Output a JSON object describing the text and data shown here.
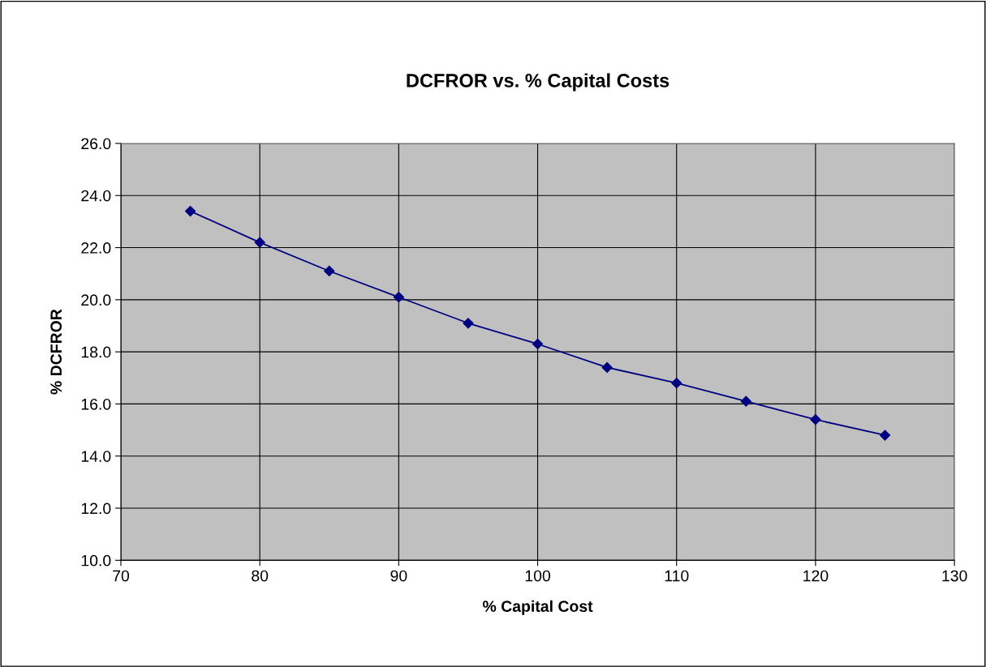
{
  "chart_data": {
    "type": "line",
    "title": "DCFROR vs. % Capital Costs",
    "xlabel": "% Capital Cost",
    "ylabel": "% DCFROR",
    "x": [
      75,
      80,
      85,
      90,
      95,
      100,
      105,
      110,
      115,
      120,
      125
    ],
    "series": [
      {
        "color": "#000080",
        "values": [
          23.4,
          22.2,
          21.1,
          20.1,
          19.1,
          18.3,
          17.4,
          16.8,
          16.1,
          15.4,
          14.8
        ]
      }
    ],
    "xlim": [
      70,
      130
    ],
    "xticks": [
      70,
      80,
      90,
      100,
      110,
      120,
      130
    ],
    "ylim": [
      10,
      26
    ],
    "yticks": [
      {
        "value": 10,
        "label": "10.0"
      },
      {
        "value": 12,
        "label": "12.0"
      },
      {
        "value": 14,
        "label": "14.0"
      },
      {
        "value": 16,
        "label": "16.0"
      },
      {
        "value": 18,
        "label": "18.0"
      },
      {
        "value": 20,
        "label": "20.0"
      },
      {
        "value": 22,
        "label": "22.0"
      },
      {
        "value": 24,
        "label": "24.0"
      },
      {
        "value": 26,
        "label": "26.0"
      }
    ],
    "grid": true,
    "marker": "diamond",
    "line_style": "solid",
    "legend": false
  }
}
